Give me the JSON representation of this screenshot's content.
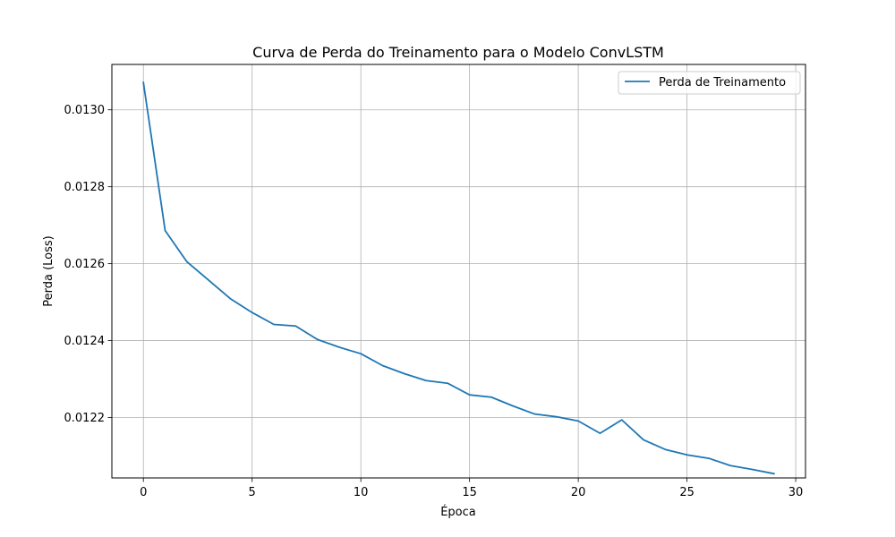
{
  "chart_data": {
    "type": "line",
    "title": "Curva de Perda do Treinamento para o Modelo ConvLSTM",
    "xlabel": "Época",
    "ylabel": "Perda (Loss)",
    "xlim": [
      -1.45,
      30.45
    ],
    "ylim": [
      0.012043,
      0.013118
    ],
    "x_ticks": [
      0,
      5,
      10,
      15,
      20,
      25,
      30
    ],
    "x_tick_labels": [
      "0",
      "5",
      "10",
      "15",
      "20",
      "25",
      "30"
    ],
    "y_ticks": [
      0.0122,
      0.0124,
      0.0126,
      0.0128,
      0.013
    ],
    "y_tick_labels": [
      "0.0122",
      "0.0124",
      "0.0126",
      "0.0128",
      "0.0130"
    ],
    "grid": true,
    "legend_position": "top-right",
    "series": [
      {
        "name": "Perda de Treinamento",
        "color": "#1f77b4",
        "x": [
          0,
          1,
          2,
          3,
          4,
          5,
          6,
          7,
          8,
          9,
          10,
          11,
          12,
          13,
          14,
          15,
          16,
          17,
          18,
          19,
          20,
          21,
          22,
          23,
          24,
          25,
          26,
          27,
          28,
          29
        ],
        "y": [
          0.013071,
          0.012686,
          0.012605,
          0.012557,
          0.012509,
          0.012473,
          0.012442,
          0.012438,
          0.012403,
          0.012383,
          0.012366,
          0.012335,
          0.012314,
          0.012296,
          0.012289,
          0.012259,
          0.012253,
          0.01223,
          0.012209,
          0.012202,
          0.012191,
          0.012159,
          0.012194,
          0.012142,
          0.012117,
          0.012103,
          0.012094,
          0.012075,
          0.012065,
          0.012054
        ]
      }
    ]
  }
}
